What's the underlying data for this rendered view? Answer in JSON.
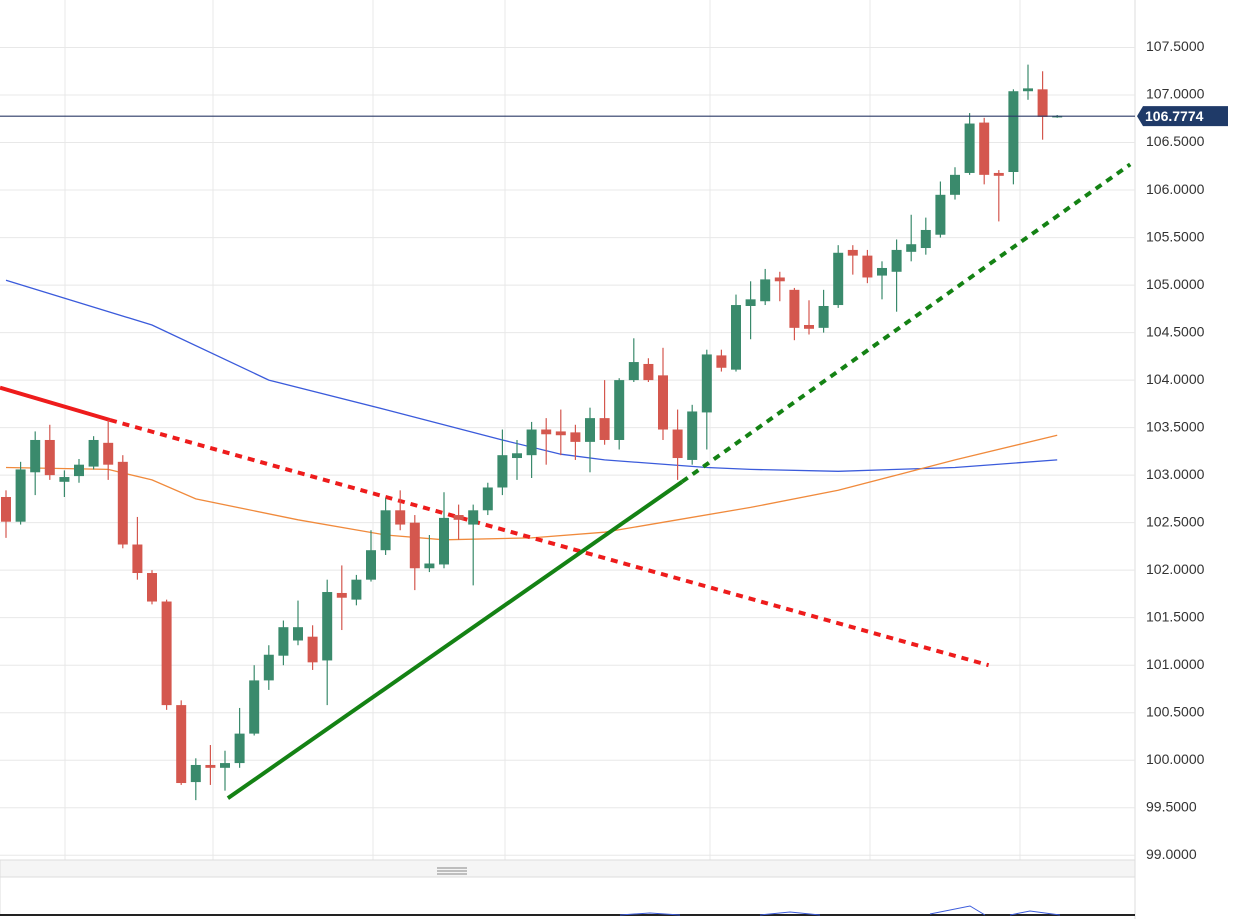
{
  "chart_data": {
    "type": "candlestick",
    "up_color": "#3a8a6c",
    "down_color": "#d4574e",
    "categories": [
      null,
      null,
      null,
      null,
      null,
      null,
      null,
      null,
      null,
      null,
      null,
      null,
      null,
      null,
      null,
      null,
      null,
      null,
      null,
      null,
      null,
      null,
      null,
      null,
      null,
      null,
      null,
      null,
      null,
      null,
      null,
      null,
      null,
      null,
      null,
      null,
      null,
      null,
      null,
      null,
      null,
      null,
      null,
      null,
      null,
      null,
      null,
      null,
      null,
      null,
      null,
      null,
      null,
      null,
      null,
      null,
      null,
      null,
      null,
      null,
      null,
      null,
      null,
      null,
      null,
      null,
      null,
      null,
      null,
      null,
      null,
      null,
      null
    ],
    "open": [
      102.77,
      102.51,
      103.03,
      103.37,
      102.93,
      102.99,
      103.09,
      103.34,
      103.14,
      102.27,
      101.97,
      101.67,
      100.58,
      99.77,
      99.95,
      99.92,
      99.97,
      100.28,
      100.84,
      101.1,
      101.26,
      101.3,
      101.05,
      101.76,
      101.69,
      101.9,
      102.21,
      102.63,
      102.5,
      102.02,
      102.06,
      102.58,
      102.48,
      102.63,
      102.87,
      103.18,
      103.21,
      103.48,
      103.46,
      103.45,
      103.35,
      103.6,
      103.37,
      104.0,
      104.17,
      104.05,
      103.48,
      103.16,
      103.66,
      104.26,
      104.11,
      104.78,
      104.83,
      105.08,
      104.95,
      104.58,
      104.55,
      104.79,
      105.37,
      105.31,
      105.1,
      105.14,
      105.35,
      105.39,
      105.53,
      105.95,
      106.18,
      106.71,
      106.18,
      106.19,
      107.04,
      107.06,
      106.77
    ],
    "high": [
      102.84,
      103.14,
      103.46,
      103.53,
      103.05,
      103.17,
      103.41,
      103.58,
      103.21,
      102.56,
      102.0,
      101.69,
      100.63,
      100.02,
      100.16,
      100.1,
      100.55,
      101.0,
      101.21,
      101.47,
      101.68,
      101.42,
      101.9,
      102.05,
      101.95,
      102.42,
      102.76,
      102.84,
      102.58,
      102.37,
      102.82,
      102.69,
      102.69,
      102.92,
      103.48,
      103.37,
      103.56,
      103.6,
      103.69,
      103.53,
      103.71,
      104.0,
      104.02,
      104.44,
      104.23,
      104.34,
      103.69,
      103.74,
      104.32,
      104.32,
      104.9,
      105.04,
      105.17,
      105.14,
      104.97,
      104.84,
      104.95,
      105.42,
      105.42,
      105.37,
      105.25,
      105.48,
      105.74,
      105.71,
      106.09,
      106.24,
      106.81,
      106.76,
      106.21,
      107.06,
      107.32,
      107.25,
      106.79
    ],
    "low": [
      102.34,
      102.48,
      102.79,
      102.95,
      102.77,
      102.92,
      103.06,
      102.95,
      102.23,
      101.9,
      101.64,
      100.53,
      99.74,
      99.58,
      99.74,
      99.68,
      99.92,
      100.26,
      100.74,
      101.0,
      101.21,
      100.95,
      100.58,
      101.37,
      101.63,
      101.88,
      102.16,
      102.42,
      101.79,
      101.98,
      102.02,
      102.32,
      101.84,
      102.58,
      102.79,
      102.95,
      102.97,
      103.11,
      103.21,
      103.16,
      103.03,
      103.32,
      103.27,
      103.98,
      103.98,
      103.37,
      102.95,
      103.11,
      103.27,
      104.09,
      104.09,
      104.43,
      104.79,
      104.83,
      104.42,
      104.48,
      104.5,
      104.76,
      105.11,
      105.02,
      104.85,
      104.72,
      105.25,
      105.32,
      105.5,
      105.9,
      106.16,
      106.06,
      105.67,
      106.06,
      106.95,
      106.53,
      106.76
    ],
    "close": [
      102.51,
      103.06,
      103.37,
      103.0,
      102.98,
      103.11,
      103.37,
      103.11,
      102.27,
      101.97,
      101.67,
      100.58,
      99.76,
      99.95,
      99.92,
      99.97,
      100.28,
      100.84,
      101.11,
      101.4,
      101.4,
      101.03,
      101.77,
      101.71,
      101.9,
      102.21,
      102.63,
      102.48,
      102.02,
      102.07,
      102.55,
      102.53,
      102.63,
      102.87,
      103.21,
      103.23,
      103.48,
      103.43,
      103.42,
      103.35,
      103.6,
      103.37,
      104.0,
      104.19,
      104.0,
      103.48,
      103.18,
      103.67,
      104.27,
      104.13,
      104.79,
      104.85,
      105.06,
      105.04,
      104.55,
      104.54,
      104.78,
      105.34,
      105.31,
      105.08,
      105.18,
      105.37,
      105.43,
      105.58,
      105.95,
      106.16,
      106.7,
      106.16,
      106.15,
      107.04,
      107.07,
      106.77,
      106.78
    ],
    "moving_averages": [
      {
        "color": "#3b5bdb",
        "x": [
          0,
          10,
          18,
          26,
          34,
          38,
          41,
          48,
          51,
          57,
          65,
          72
        ],
        "values": [
          105.05,
          104.58,
          104.0,
          103.69,
          103.37,
          103.22,
          103.16,
          103.08,
          103.06,
          103.04,
          103.08,
          103.16
        ]
      },
      {
        "color": "#f08a3c",
        "x": [
          0,
          7,
          10,
          13,
          20,
          26,
          30,
          36,
          41,
          46,
          51,
          57,
          61,
          65,
          72
        ],
        "values": [
          103.08,
          103.06,
          102.95,
          102.75,
          102.53,
          102.37,
          102.32,
          102.34,
          102.4,
          102.53,
          102.66,
          102.84,
          103.0,
          103.16,
          103.42
        ]
      }
    ],
    "trendlines": [
      {
        "color": "#ee1c1c",
        "style": "solid",
        "x": [
          -0.41,
          7.12
        ],
        "values": [
          103.92,
          103.58
        ]
      },
      {
        "color": "#ee1c1c",
        "style": "dotted",
        "x": [
          7.12,
          67.3
        ],
        "values": [
          103.58,
          101.0
        ]
      },
      {
        "color": "#148214",
        "style": "solid",
        "x": [
          15.2,
          46.3
        ],
        "values": [
          99.6,
          102.93
        ]
      },
      {
        "color": "#148214",
        "style": "dotted",
        "x": [
          46.3,
          77.0
        ],
        "values": [
          102.93,
          106.27
        ]
      }
    ],
    "last_price": 106.7774,
    "ylim": [
      98.95,
      108.0
    ],
    "yticks": [
      {
        "value": 99.0,
        "label": "99.0000"
      },
      {
        "value": 99.5,
        "label": "99.5000"
      },
      {
        "value": 100.0,
        "label": "100.0000"
      },
      {
        "value": 100.5,
        "label": "100.5000"
      },
      {
        "value": 101.0,
        "label": "101.0000"
      },
      {
        "value": 101.5,
        "label": "101.5000"
      },
      {
        "value": 102.0,
        "label": "102.0000"
      },
      {
        "value": 102.5,
        "label": "102.5000"
      },
      {
        "value": 103.0,
        "label": "103.0000"
      },
      {
        "value": 103.5,
        "label": "103.5000"
      },
      {
        "value": 104.0,
        "label": "104.0000"
      },
      {
        "value": 104.5,
        "label": "104.5000"
      },
      {
        "value": 105.0,
        "label": "105.0000"
      },
      {
        "value": 105.5,
        "label": "105.5000"
      },
      {
        "value": 106.0,
        "label": "106.0000"
      },
      {
        "value": 106.5,
        "label": "106.5000"
      },
      {
        "value": 107.0,
        "label": "107.0000"
      },
      {
        "value": 107.5,
        "label": "107.5000"
      }
    ],
    "grid": true
  }
}
